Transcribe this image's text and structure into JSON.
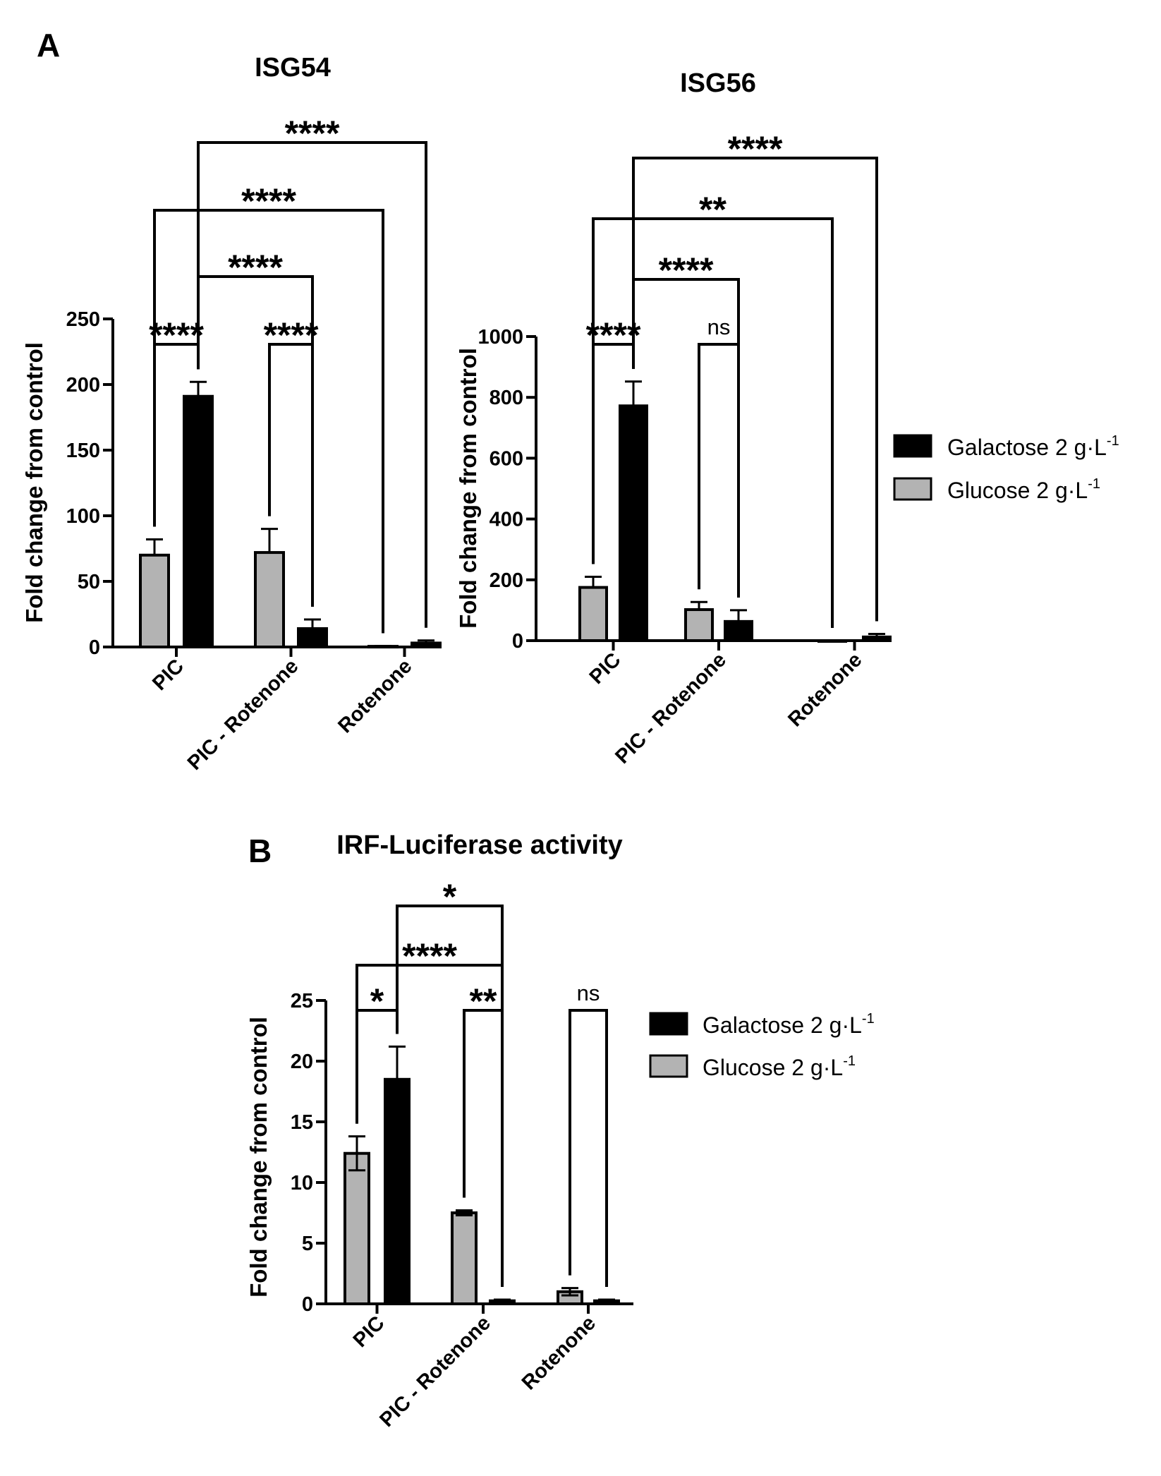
{
  "panels": {
    "a_label": "A",
    "b_label": "B"
  },
  "legend": {
    "galactose": "Galactose 2 g·L",
    "glucose": "Glucose 2 g·L",
    "unit_superscript": "-1"
  },
  "colors": {
    "galactose": "#000000",
    "glucose": "#b3b3b3",
    "outline": "#000000"
  },
  "chart_data": [
    {
      "id": "isg54",
      "type": "bar",
      "title": "ISG54",
      "ylabel": "Fold change from control",
      "categories": [
        "PIC",
        "PIC - Rotenone",
        "Rotenone"
      ],
      "yticks": [
        0,
        50,
        100,
        150,
        200,
        250
      ],
      "ylim": [
        0,
        250
      ],
      "series": [
        {
          "name": "Glucose 2 g·L-1",
          "values": [
            70,
            72,
            0.5
          ],
          "errors": [
            12,
            18,
            0.3
          ]
        },
        {
          "name": "Galactose 2 g·L-1",
          "values": [
            191,
            14,
            3
          ],
          "errors": [
            11,
            7,
            2
          ]
        }
      ],
      "significance": [
        {
          "from": [
            0,
            0
          ],
          "to": [
            0,
            1
          ],
          "label": "****",
          "level": 0
        },
        {
          "from": [
            1,
            0
          ],
          "to": [
            1,
            1
          ],
          "label": "****",
          "level": 0
        },
        {
          "from": [
            0,
            1
          ],
          "to": [
            1,
            1
          ],
          "label": "****",
          "level": 1
        },
        {
          "from": [
            0,
            0
          ],
          "to": [
            2,
            0
          ],
          "label": "****",
          "level": 2
        },
        {
          "from": [
            0,
            1
          ],
          "to": [
            2,
            1
          ],
          "label": "****",
          "level": 3
        }
      ]
    },
    {
      "id": "isg56",
      "type": "bar",
      "title": "ISG56",
      "ylabel": "Fold change from control",
      "categories": [
        "PIC",
        "PIC - Rotenone",
        "Rotenone"
      ],
      "yticks": [
        0,
        200,
        400,
        600,
        800,
        1000
      ],
      "ylim": [
        0,
        1000
      ],
      "series": [
        {
          "name": "Glucose 2 g·L-1",
          "values": [
            175,
            102,
            0
          ],
          "errors": [
            35,
            25,
            0
          ]
        },
        {
          "name": "Galactose 2 g·L-1",
          "values": [
            772,
            63,
            12
          ],
          "errors": [
            80,
            37,
            10
          ]
        }
      ],
      "significance": [
        {
          "from": [
            0,
            0
          ],
          "to": [
            0,
            1
          ],
          "label": "****",
          "level": 0
        },
        {
          "from": [
            1,
            0
          ],
          "to": [
            1,
            1
          ],
          "label": "ns",
          "level": 0
        },
        {
          "from": [
            0,
            1
          ],
          "to": [
            1,
            1
          ],
          "label": "****",
          "level": 1
        },
        {
          "from": [
            0,
            0
          ],
          "to": [
            2,
            0
          ],
          "label": "**",
          "level": 2
        },
        {
          "from": [
            0,
            1
          ],
          "to": [
            2,
            1
          ],
          "label": "****",
          "level": 3
        }
      ]
    },
    {
      "id": "irf",
      "type": "bar",
      "title": "IRF-Luciferase activity",
      "ylabel": "Fold change from control",
      "categories": [
        "PIC",
        "PIC - Rotenone",
        "Rotenone"
      ],
      "yticks": [
        0,
        5,
        10,
        15,
        20,
        25
      ],
      "ylim": [
        0,
        25
      ],
      "series": [
        {
          "name": "Glucose 2 g·L-1",
          "values": [
            12.4,
            7.5,
            1.0
          ],
          "errors": [
            1.4,
            0.2,
            0.3
          ],
          "errors_both": true
        },
        {
          "name": "Galactose 2 g·L-1",
          "values": [
            18.5,
            0.25,
            0.25
          ],
          "errors": [
            2.7,
            0.1,
            0.1
          ],
          "errors_both": true
        }
      ],
      "significance": [
        {
          "from": [
            0,
            0
          ],
          "to": [
            0,
            1
          ],
          "label": "*",
          "level": 0
        },
        {
          "from": [
            1,
            0
          ],
          "to": [
            1,
            1
          ],
          "label": "**",
          "level": 0
        },
        {
          "from": [
            2,
            0
          ],
          "to": [
            2,
            1
          ],
          "label": "ns",
          "level": 0
        },
        {
          "from": [
            0,
            0
          ],
          "to": [
            1,
            1
          ],
          "label": "****",
          "level": 1
        },
        {
          "from": [
            0,
            1
          ],
          "to": [
            1,
            1
          ],
          "label": "*",
          "level": 2
        }
      ]
    }
  ]
}
